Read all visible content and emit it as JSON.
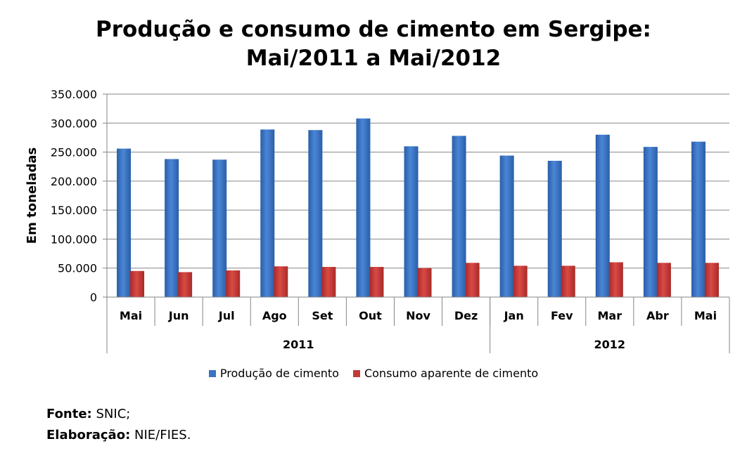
{
  "chart_data": {
    "type": "bar",
    "title": [
      "Produção e consumo de cimento em Sergipe:",
      "Mai/2011 a Mai/2012"
    ],
    "ylabel": "Em toneladas",
    "xlabel": "",
    "ylim": [
      0,
      350000
    ],
    "yticks": [
      0,
      50000,
      100000,
      150000,
      200000,
      250000,
      300000,
      350000
    ],
    "ytick_labels": [
      "0",
      "50.000",
      "100.000",
      "150.000",
      "200.000",
      "250.000",
      "300.000",
      "350.000"
    ],
    "categories": [
      "Mai",
      "Jun",
      "Jul",
      "Ago",
      "Set",
      "Out",
      "Nov",
      "Dez",
      "Jan",
      "Fev",
      "Mar",
      "Abr",
      "Mai"
    ],
    "groups": [
      {
        "label": "2011",
        "count": 8
      },
      {
        "label": "2012",
        "count": 5
      }
    ],
    "series": [
      {
        "name": "Produção de cimento",
        "color": "#3b73c2",
        "values": [
          256000,
          238000,
          237000,
          289000,
          288000,
          308000,
          260000,
          278000,
          244000,
          235000,
          280000,
          259000,
          268000
        ]
      },
      {
        "name": "Consumo aparente de cimento",
        "color": "#c33a36",
        "values": [
          45000,
          43000,
          46000,
          53000,
          52000,
          52000,
          50000,
          59000,
          54000,
          54000,
          60000,
          59000,
          59000
        ]
      }
    ],
    "gridlines": true,
    "legend_position": "bottom"
  },
  "footer": {
    "source_label": "Fonte:",
    "source_value": "SNIC;",
    "author_label": "Elaboração:",
    "author_value": "NIE/FIES."
  }
}
